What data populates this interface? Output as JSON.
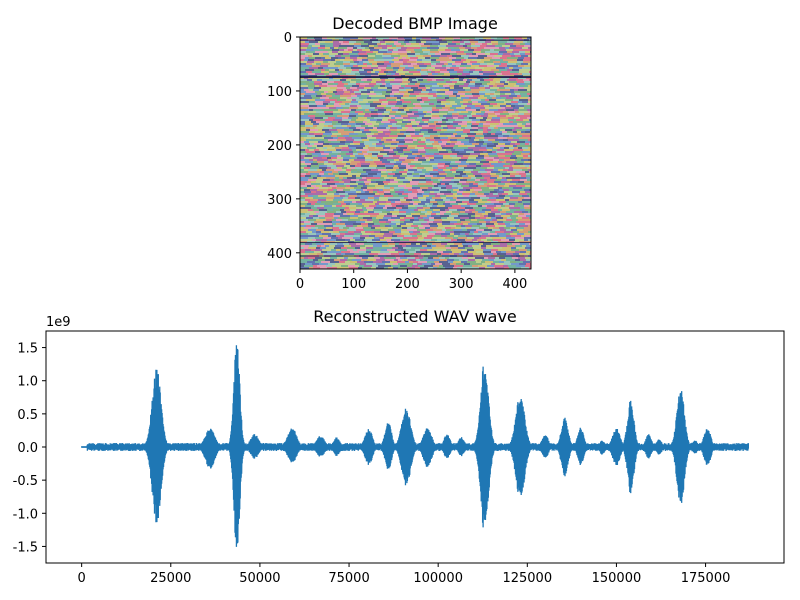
{
  "chart_data": [
    {
      "type": "heatmap",
      "title": "Decoded BMP Image",
      "xlabel": "",
      "ylabel": "",
      "xlim": [
        0,
        430
      ],
      "ylim": [
        430,
        0
      ],
      "x_ticks": [
        0,
        100,
        200,
        300,
        400
      ],
      "y_ticks": [
        0,
        100,
        200,
        300,
        400
      ],
      "content": "noise-like colored pixel pattern (RGB)"
    },
    {
      "type": "line",
      "title": "Reconstructed WAV wave",
      "xlabel": "",
      "ylabel": "",
      "offset_label": "1e9",
      "xlim": [
        -10000,
        197000
      ],
      "ylim": [
        -1.75,
        1.75
      ],
      "x_ticks": [
        "0",
        "25000",
        "50000",
        "75000",
        "100000",
        "125000",
        "150000",
        "175000"
      ],
      "y_ticks": [
        "-1.5",
        "-1.0",
        "-0.5",
        "0.0",
        "0.5",
        "1.0",
        "1.5"
      ],
      "line_color": "#1f77b4",
      "series": [
        {
          "x_range": [
            0,
            187000
          ],
          "envelope_bursts": [
            {
              "center": 21000,
              "width": 2200,
              "max": 1.2,
              "min": -1.17
            },
            {
              "center": 43500,
              "width": 1500,
              "max": 1.63,
              "min": -1.6
            },
            {
              "center": 36000,
              "width": 2400,
              "max": 0.28,
              "min": -0.33
            },
            {
              "center": 48500,
              "width": 2000,
              "max": 0.2,
              "min": -0.18
            },
            {
              "center": 59000,
              "width": 2200,
              "max": 0.3,
              "min": -0.25
            },
            {
              "center": 67000,
              "width": 2000,
              "max": 0.17,
              "min": -0.15
            },
            {
              "center": 71500,
              "width": 1500,
              "max": 0.15,
              "min": -0.14
            },
            {
              "center": 80500,
              "width": 1800,
              "max": 0.28,
              "min": -0.28
            },
            {
              "center": 86000,
              "width": 1600,
              "max": 0.38,
              "min": -0.35
            },
            {
              "center": 91000,
              "width": 2200,
              "max": 0.6,
              "min": -0.6
            },
            {
              "center": 97000,
              "width": 2000,
              "max": 0.3,
              "min": -0.32
            },
            {
              "center": 102500,
              "width": 1500,
              "max": 0.2,
              "min": -0.18
            },
            {
              "center": 106500,
              "width": 1500,
              "max": 0.15,
              "min": -0.14
            },
            {
              "center": 113000,
              "width": 2000,
              "max": 1.3,
              "min": -1.3
            },
            {
              "center": 123000,
              "width": 2200,
              "max": 0.8,
              "min": -0.8
            },
            {
              "center": 130000,
              "width": 1500,
              "max": 0.2,
              "min": -0.18
            },
            {
              "center": 135500,
              "width": 1700,
              "max": 0.45,
              "min": -0.45
            },
            {
              "center": 140000,
              "width": 1500,
              "max": 0.3,
              "min": -0.28
            },
            {
              "center": 146000,
              "width": 1200,
              "max": 0.1,
              "min": -0.12
            },
            {
              "center": 150000,
              "width": 1800,
              "max": 0.3,
              "min": -0.3
            },
            {
              "center": 154000,
              "width": 1600,
              "max": 0.72,
              "min": -0.72
            },
            {
              "center": 159000,
              "width": 1400,
              "max": 0.2,
              "min": -0.18
            },
            {
              "center": 162000,
              "width": 1300,
              "max": 0.12,
              "min": -0.12
            },
            {
              "center": 168000,
              "width": 1900,
              "max": 0.88,
              "min": -0.88
            },
            {
              "center": 172000,
              "width": 1500,
              "max": 0.1,
              "min": -0.1
            },
            {
              "center": 175500,
              "width": 1600,
              "max": 0.3,
              "min": -0.3
            }
          ],
          "baseline_amplitude": 0.06
        }
      ]
    }
  ]
}
